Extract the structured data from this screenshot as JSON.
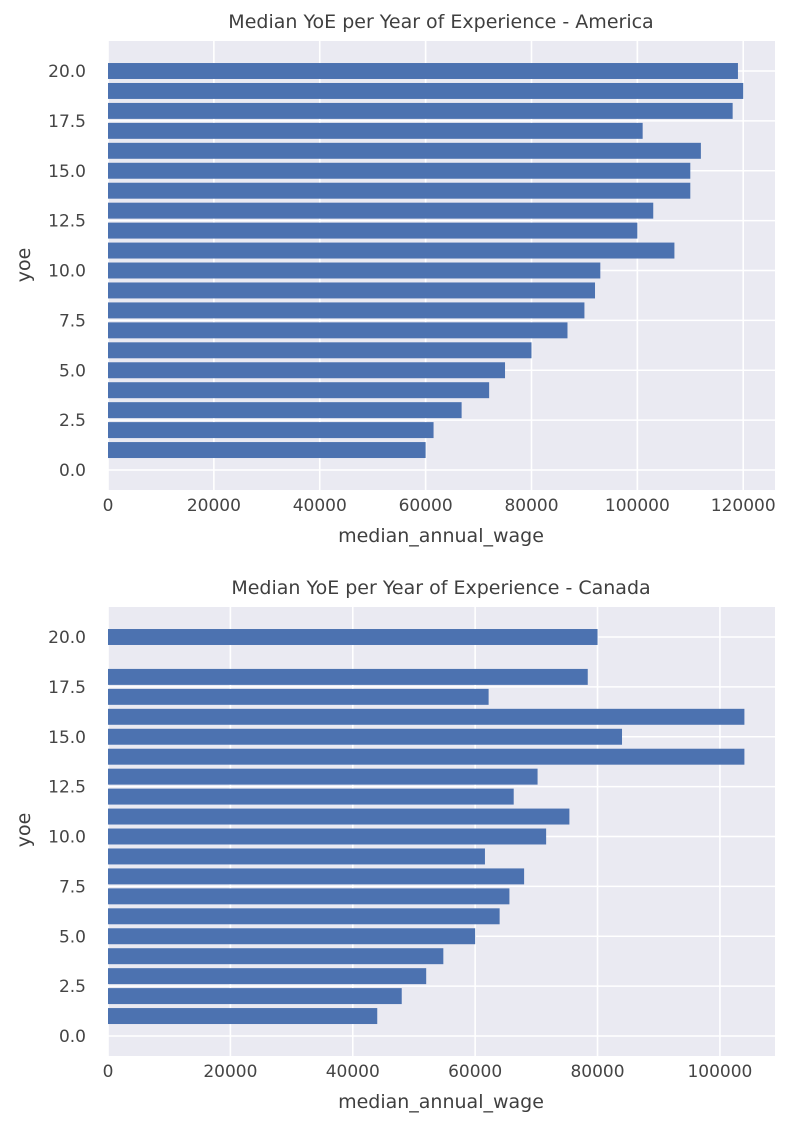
{
  "chart_data": [
    {
      "type": "bar",
      "orientation": "horizontal",
      "title": "Median YoE per Year of Experience - America",
      "xlabel": "median_annual_wage",
      "ylabel": "yoe",
      "xlim": [
        0,
        126000
      ],
      "ylim": [
        0,
        20
      ],
      "grid": true,
      "xticks": [
        "0",
        "20000",
        "40000",
        "60000",
        "80000",
        "100000",
        "120000"
      ],
      "xtick_values": [
        0,
        20000,
        40000,
        60000,
        80000,
        100000,
        120000
      ],
      "yticks": [
        "0.0",
        "2.5",
        "5.0",
        "7.5",
        "10.0",
        "12.5",
        "15.0",
        "17.5",
        "20.0"
      ],
      "ytick_values": [
        0,
        2.5,
        5,
        7.5,
        10,
        12.5,
        15,
        17.5,
        20
      ],
      "y": [
        1,
        2,
        3,
        4,
        5,
        6,
        7,
        8,
        9,
        10,
        11,
        12,
        13,
        14,
        15,
        16,
        17,
        18,
        19,
        20
      ],
      "values": [
        60000,
        61500,
        66800,
        72000,
        75000,
        80000,
        86800,
        90000,
        92000,
        93000,
        107000,
        100000,
        103000,
        110000,
        110000,
        112000,
        101000,
        118000,
        120000,
        119000
      ]
    },
    {
      "type": "bar",
      "orientation": "horizontal",
      "title": "Median YoE per Year of Experience - Canada",
      "xlabel": "median_annual_wage",
      "ylabel": "yoe",
      "xlim": [
        0,
        109000
      ],
      "ylim": [
        0,
        20
      ],
      "grid": true,
      "xticks": [
        "0",
        "20000",
        "40000",
        "60000",
        "80000",
        "100000"
      ],
      "xtick_values": [
        0,
        20000,
        40000,
        60000,
        80000,
        100000
      ],
      "yticks": [
        "0.0",
        "2.5",
        "5.0",
        "7.5",
        "10.0",
        "12.5",
        "15.0",
        "17.5",
        "20.0"
      ],
      "ytick_values": [
        0,
        2.5,
        5,
        7.5,
        10,
        12.5,
        15,
        17.5,
        20
      ],
      "y": [
        1,
        2,
        3,
        4,
        5,
        6,
        7,
        8,
        9,
        10,
        11,
        12,
        13,
        14,
        15,
        16,
        17,
        18,
        20
      ],
      "values": [
        44000,
        48000,
        52000,
        54800,
        60000,
        64000,
        65600,
        68000,
        61600,
        71600,
        75400,
        66300,
        70200,
        104000,
        84000,
        104000,
        62200,
        78400,
        80000
      ]
    }
  ]
}
